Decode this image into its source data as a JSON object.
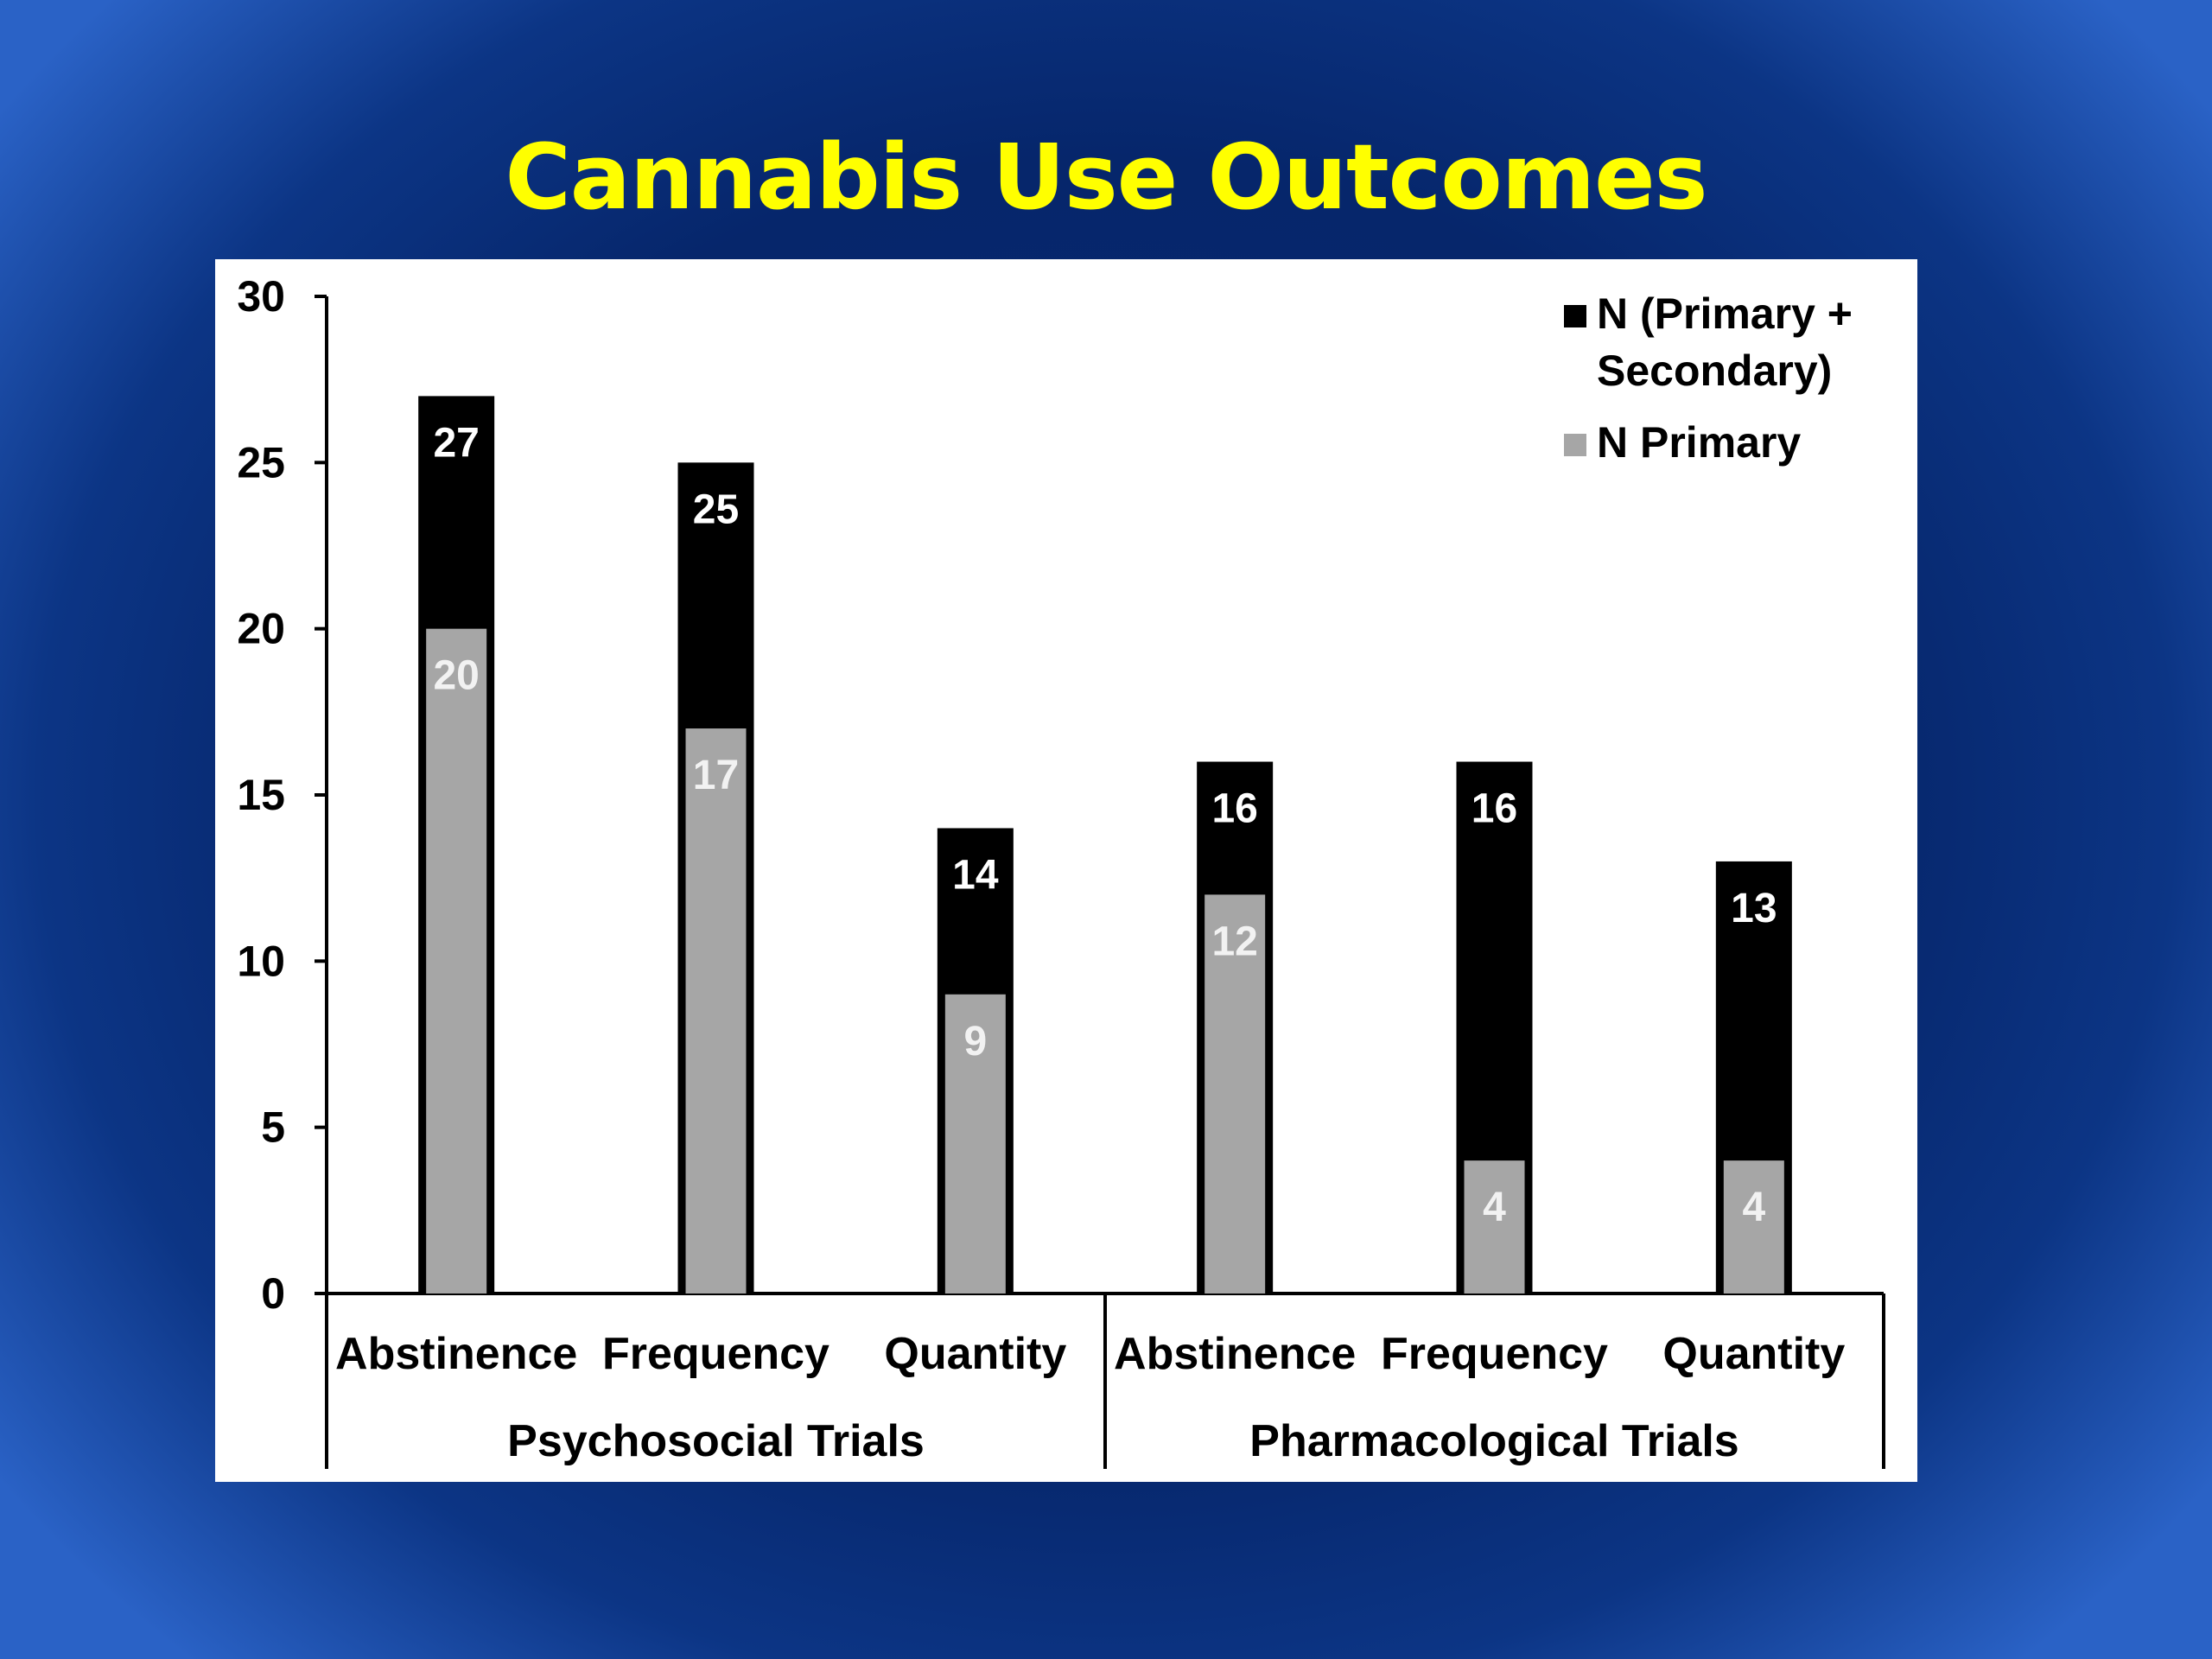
{
  "slide": {
    "title": "Cannabis Use Outcomes"
  },
  "colors": {
    "title": "#ffff00",
    "total_bar": "#000000",
    "primary_bar": "#a6a6a6",
    "background": "#06266b"
  },
  "chart_data": {
    "type": "bar",
    "title": "Cannabis Use Outcomes",
    "xlabel": "",
    "ylabel": "",
    "ylim": [
      0,
      30
    ],
    "yticks": [
      0,
      5,
      10,
      15,
      20,
      25,
      30
    ],
    "grid": false,
    "legend": "top-right",
    "categories": [
      "Abstinence",
      "Frequency",
      "Quantity",
      "Abstinence",
      "Frequency",
      "Quantity"
    ],
    "groups": [
      {
        "label": "Psychosocial Trials",
        "categories": [
          "Abstinence",
          "Frequency",
          "Quantity"
        ]
      },
      {
        "label": "Pharmacological Trials",
        "categories": [
          "Abstinence",
          "Frequency",
          "Quantity"
        ]
      }
    ],
    "series": [
      {
        "name": "N (Primary + Secondary)",
        "legend_lines": [
          "N (Primary +",
          "Secondary)"
        ],
        "values": [
          27,
          25,
          14,
          16,
          16,
          13
        ]
      },
      {
        "name": "N Primary",
        "legend_lines": [
          "N Primary"
        ],
        "values": [
          20,
          17,
          9,
          12,
          4,
          4
        ]
      }
    ]
  }
}
